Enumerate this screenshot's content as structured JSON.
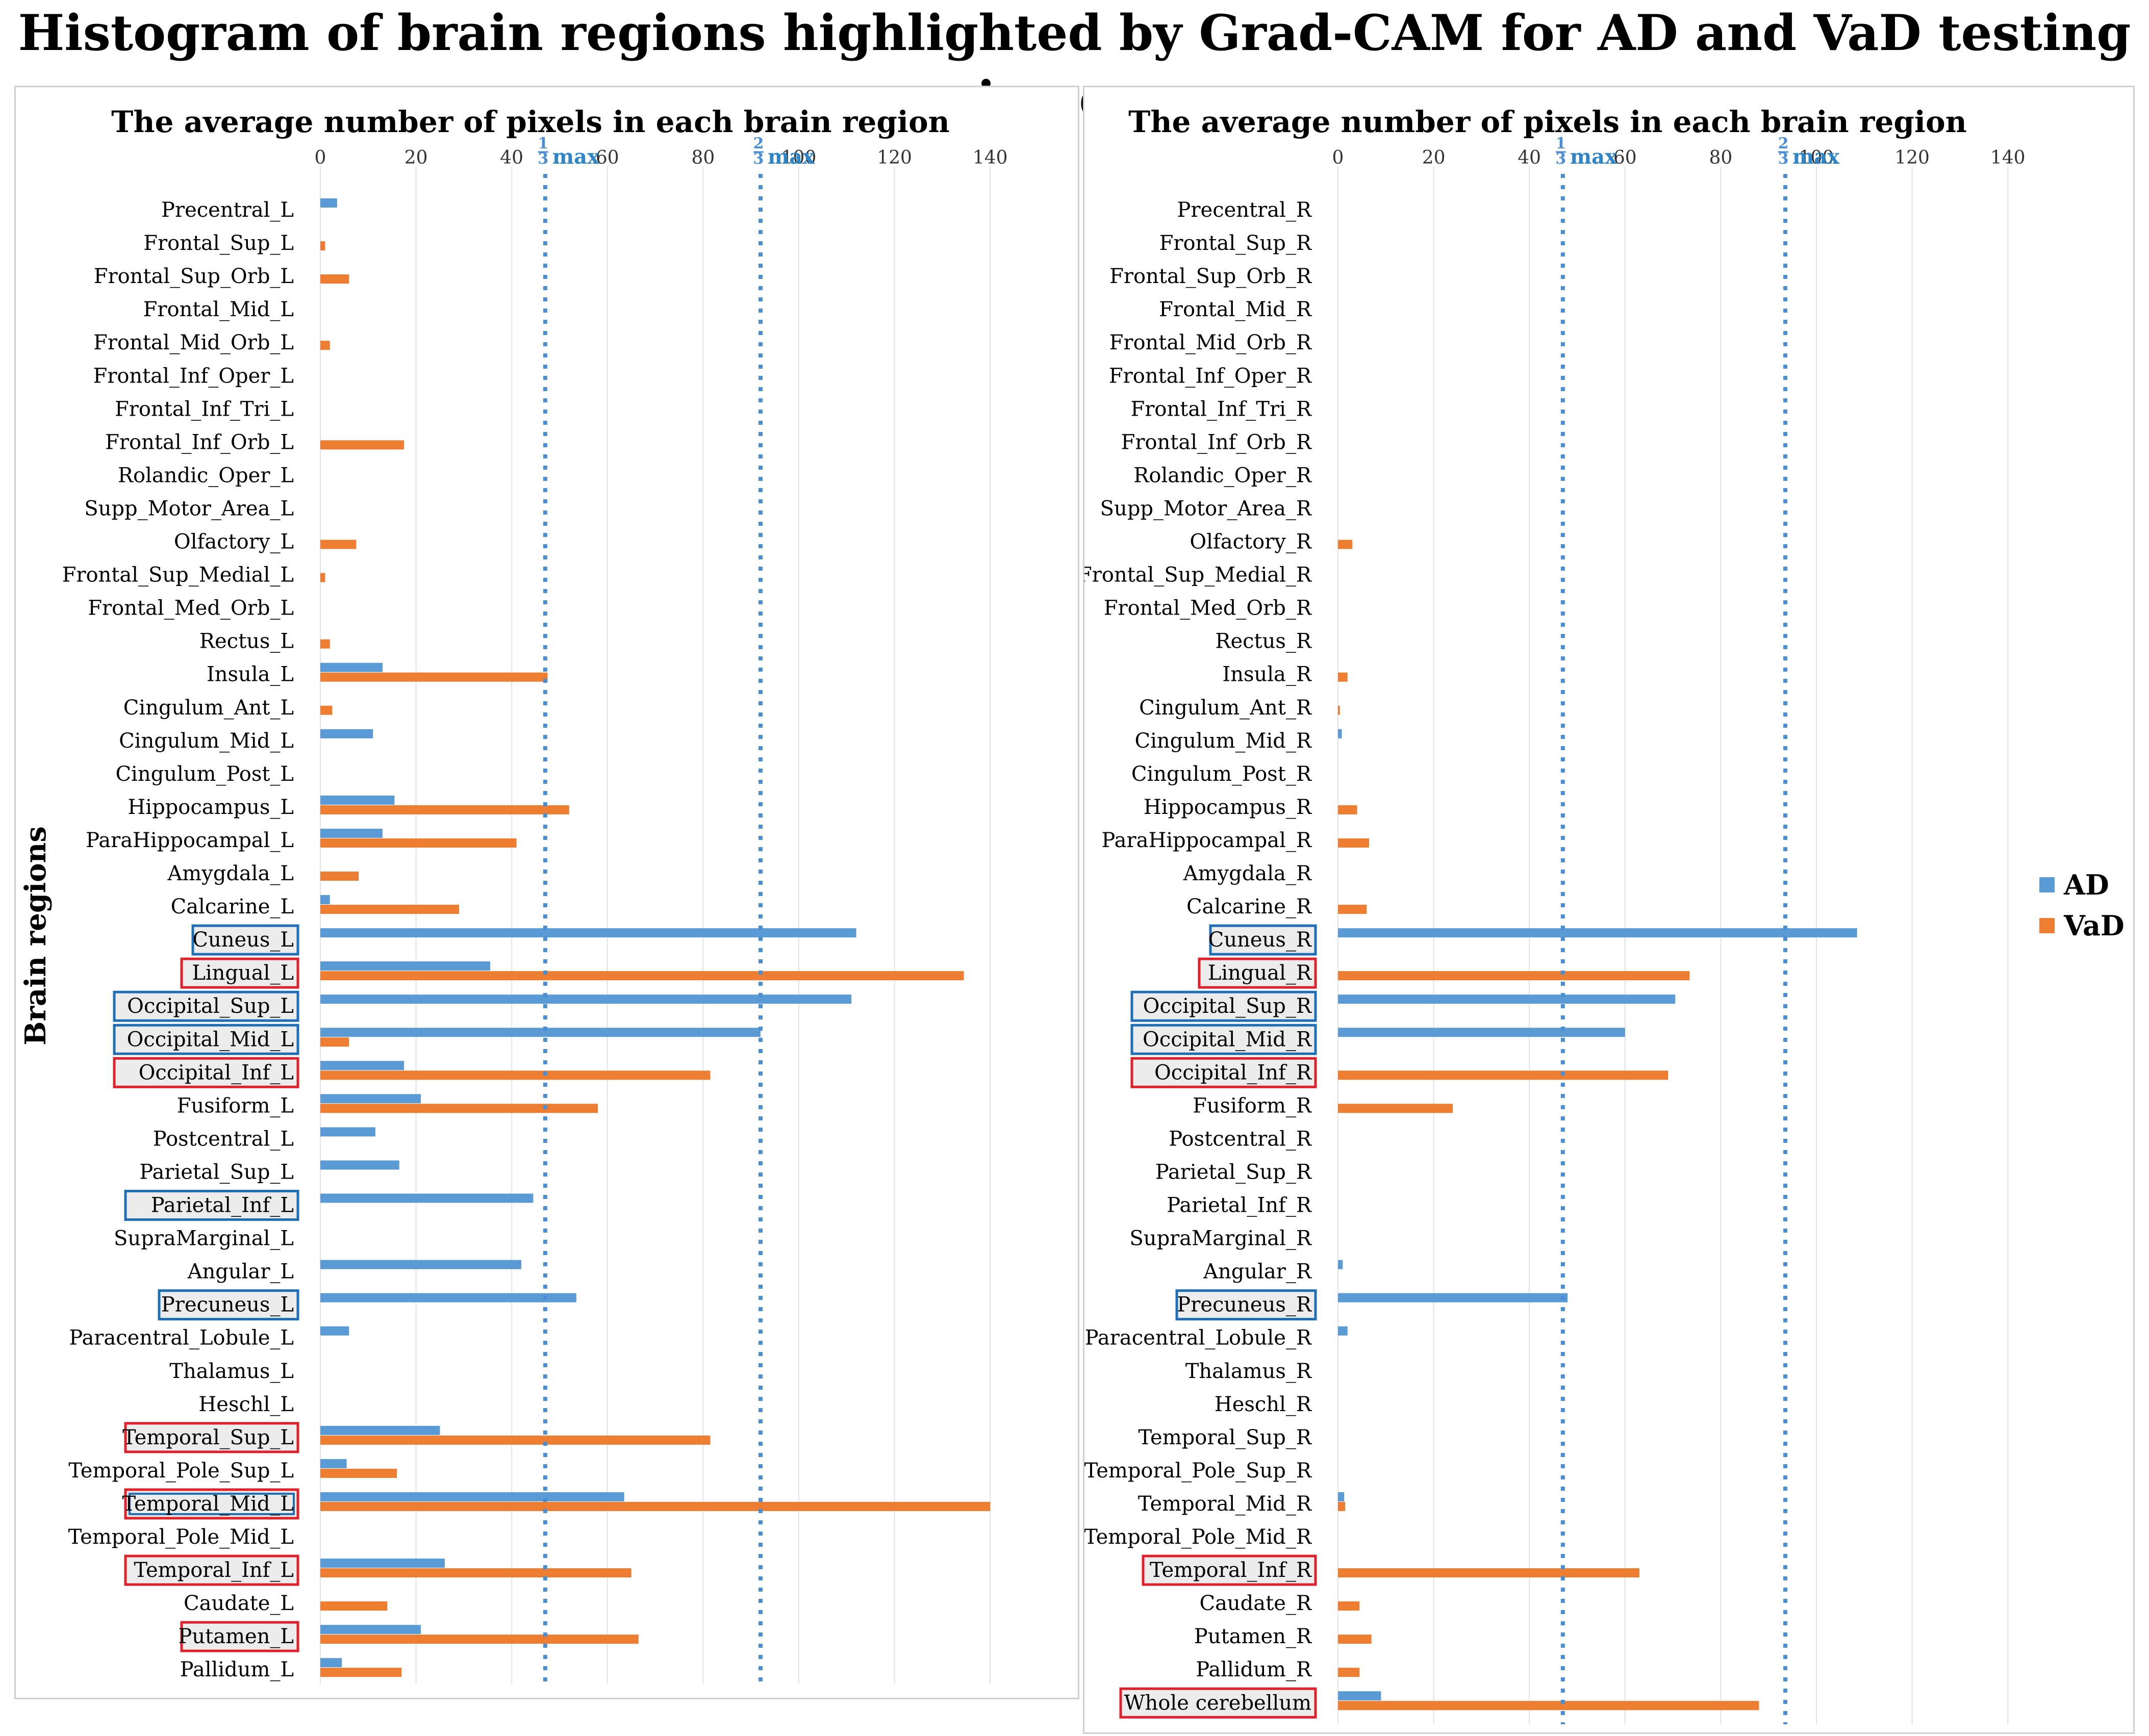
{
  "title": "Histogram of brain regions highlighted by Grad-CAM for AD and VaD testing images",
  "y_axis_title": "Brain regions",
  "legend": [
    {
      "name": "AD",
      "color": "#5b9bd5"
    },
    {
      "name": "VaD",
      "color": "#ed7d31"
    }
  ],
  "colors": {
    "AD": "#5b9bd5",
    "VaD": "#ed7d31",
    "box_blue": "#1f6fb8",
    "box_red": "#e0202a",
    "vline": "#4a8fd6"
  },
  "chart_data": [
    {
      "type": "bar",
      "orientation": "horizontal",
      "panel": "left",
      "title": "The average number of pixels in each brain region",
      "xlim": [
        0,
        150
      ],
      "xticks": [
        0,
        20,
        40,
        60,
        80,
        100,
        120,
        140
      ],
      "reference_lines": [
        {
          "label_num": "1",
          "label_den": "3",
          "label_text": "max",
          "value": 47
        },
        {
          "label_num": "2",
          "label_den": "3",
          "label_text": "max",
          "value": 92
        }
      ],
      "categories": [
        "Precentral_L",
        "Frontal_Sup_L",
        "Frontal_Sup_Orb_L",
        "Frontal_Mid_L",
        "Frontal_Mid_Orb_L",
        "Frontal_Inf_Oper_L",
        "Frontal_Inf_Tri_L",
        "Frontal_Inf_Orb_L",
        "Rolandic_Oper_L",
        "Supp_Motor_Area_L",
        "Olfactory_L",
        "Frontal_Sup_Medial_L",
        "Frontal_Med_Orb_L",
        "Rectus_L",
        "Insula_L",
        "Cingulum_Ant_L",
        "Cingulum_Mid_L",
        "Cingulum_Post_L",
        "Hippocampus_L",
        "ParaHippocampal_L",
        "Amygdala_L",
        "Calcarine_L",
        "Cuneus_L",
        "Lingual_L",
        "Occipital_Sup_L",
        "Occipital_Mid_L",
        "Occipital_Inf_L",
        "Fusiform_L",
        "Postcentral_L",
        "Parietal_Sup_L",
        "Parietal_Inf_L",
        "SupraMarginal_L",
        "Angular_L",
        "Precuneus_L",
        "Paracentral_Lobule_L",
        "Thalamus_L",
        "Heschl_L",
        "Temporal_Sup_L",
        "Temporal_Pole_Sup_L",
        "Temporal_Mid_L",
        "Temporal_Pole_Mid_L",
        "Temporal_Inf_L",
        "Caudate_L",
        "Putamen_L",
        "Pallidum_L"
      ],
      "highlight": [
        "",
        "",
        "",
        "",
        "",
        "",
        "",
        "",
        "",
        "",
        "",
        "",
        "",
        "",
        "",
        "",
        "",
        "",
        "",
        "",
        "",
        "",
        "blue",
        "red",
        "blue",
        "blue",
        "red",
        "",
        "",
        "",
        "blue",
        "",
        "",
        "blue",
        "",
        "",
        "",
        "red",
        "",
        "both",
        "",
        "red",
        "",
        "red",
        ""
      ],
      "series": [
        {
          "name": "AD",
          "values": [
            3.5,
            0,
            0,
            0,
            0,
            0,
            0,
            0,
            0,
            0,
            0,
            0,
            0,
            0,
            13,
            0,
            11,
            0,
            15.5,
            13,
            0,
            2,
            112,
            35.5,
            111,
            92,
            17.5,
            21,
            11.5,
            16.5,
            44.5,
            0,
            42,
            53.5,
            6,
            0,
            0,
            25,
            5.5,
            63.5,
            0,
            26,
            0,
            21,
            4.5
          ]
        },
        {
          "name": "VaD",
          "values": [
            0,
            1,
            6,
            0,
            2,
            0,
            0,
            17.5,
            0,
            0,
            7.5,
            1,
            0,
            2,
            47.5,
            2.5,
            0,
            0,
            52,
            41,
            8,
            29,
            0,
            134.5,
            0,
            6,
            81.5,
            58,
            0,
            0,
            0,
            0,
            0,
            0,
            0,
            0,
            0,
            81.5,
            16,
            140,
            0,
            65,
            14,
            66.5,
            17
          ]
        }
      ]
    },
    {
      "type": "bar",
      "orientation": "horizontal",
      "panel": "right",
      "title": "The average number of pixels in each brain region",
      "xlim": [
        0,
        150
      ],
      "xticks": [
        0,
        20,
        40,
        60,
        80,
        100,
        120,
        140
      ],
      "reference_lines": [
        {
          "label_num": "1",
          "label_den": "3",
          "label_text": "max",
          "value": 47
        },
        {
          "label_num": "2",
          "label_den": "3",
          "label_text": "max",
          "value": 93.5
        }
      ],
      "categories": [
        "Precentral_R",
        "Frontal_Sup_R",
        "Frontal_Sup_Orb_R",
        "Frontal_Mid_R",
        "Frontal_Mid_Orb_R",
        "Frontal_Inf_Oper_R",
        "Frontal_Inf_Tri_R",
        "Frontal_Inf_Orb_R",
        "Rolandic_Oper_R",
        "Supp_Motor_Area_R",
        "Olfactory_R",
        "Frontal_Sup_Medial_R",
        "Frontal_Med_Orb_R",
        "Rectus_R",
        "Insula_R",
        "Cingulum_Ant_R",
        "Cingulum_Mid_R",
        "Cingulum_Post_R",
        "Hippocampus_R",
        "ParaHippocampal_R",
        "Amygdala_R",
        "Calcarine_R",
        "Cuneus_R",
        "Lingual_R",
        "Occipital_Sup_R",
        "Occipital_Mid_R",
        "Occipital_Inf_R",
        "Fusiform_R",
        "Postcentral_R",
        "Parietal_Sup_R",
        "Parietal_Inf_R",
        "SupraMarginal_R",
        "Angular_R",
        "Precuneus_R",
        "Paracentral_Lobule_R",
        "Thalamus_R",
        "Heschl_R",
        "Temporal_Sup_R",
        "Temporal_Pole_Sup_R",
        "Temporal_Mid_R",
        "Temporal_Pole_Mid_R",
        "Temporal_Inf_R",
        "Caudate_R",
        "Putamen_R",
        "Pallidum_R",
        "Whole cerebellum"
      ],
      "highlight": [
        "",
        "",
        "",
        "",
        "",
        "",
        "",
        "",
        "",
        "",
        "",
        "",
        "",
        "",
        "",
        "",
        "",
        "",
        "",
        "",
        "",
        "",
        "blue",
        "red",
        "blue",
        "blue",
        "red",
        "",
        "",
        "",
        "",
        "",
        "",
        "blue",
        "",
        "",
        "",
        "",
        "",
        "",
        "",
        "red",
        "",
        "",
        "",
        "red"
      ],
      "series": [
        {
          "name": "AD",
          "values": [
            0,
            0,
            0,
            0,
            0,
            0,
            0,
            0,
            0,
            0,
            0,
            0,
            0,
            0,
            0,
            0,
            0.8,
            0,
            0,
            0,
            0,
            0,
            108.5,
            0,
            70.5,
            60,
            0,
            0,
            0,
            0,
            0,
            0,
            1,
            48,
            2,
            0,
            0,
            0,
            0,
            1.3,
            0,
            0,
            0,
            0,
            0,
            9
          ]
        },
        {
          "name": "VaD",
          "values": [
            0,
            0,
            0,
            0,
            0,
            0,
            0,
            0,
            0,
            0,
            3,
            0,
            0,
            0,
            2,
            0.4,
            0,
            0,
            4,
            6.5,
            0,
            6,
            0,
            73.5,
            0,
            0,
            69,
            24,
            0,
            0,
            0,
            0,
            0,
            0,
            0,
            0,
            0,
            0,
            0,
            1.5,
            0,
            63,
            4.5,
            7,
            4.5,
            88
          ]
        }
      ]
    }
  ]
}
